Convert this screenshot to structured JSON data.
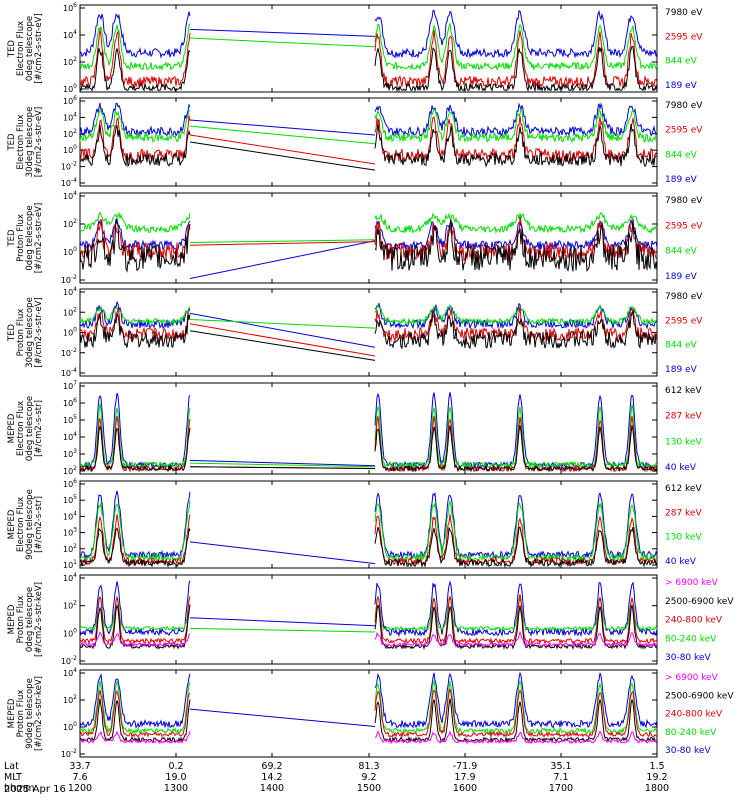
{
  "colors": {
    "black": "#000000",
    "red": "#e00000",
    "green": "#00dd00",
    "blue": "#0000dd",
    "magenta": "#ff00ff"
  },
  "chart_data": [
    {
      "type": "line",
      "title": "",
      "ylabel": [
        "TED",
        "Electron Flux",
        "0deg telescope",
        "[#/cm2-s-str-eV]"
      ],
      "yticks": [
        "10^6",
        "10^4",
        "10^2",
        "10^0"
      ],
      "legend": [
        {
          "label": "7980 eV",
          "color": "black"
        },
        {
          "label": "2595 eV",
          "color": "red"
        },
        {
          "label": "844 eV",
          "color": "green"
        },
        {
          "label": "189 eV",
          "color": "blue"
        }
      ]
    },
    {
      "type": "line",
      "title": "",
      "ylabel": [
        "TED",
        "Electron Flux",
        "30deg telescope",
        "[#/cm2-s-str-eV]"
      ],
      "yticks": [
        "10^6",
        "10^4",
        "10^2",
        "10^0",
        "10^-2",
        "10^-4"
      ],
      "legend": [
        {
          "label": "7980 eV",
          "color": "black"
        },
        {
          "label": "2595 eV",
          "color": "red"
        },
        {
          "label": "844 eV",
          "color": "green"
        },
        {
          "label": "189 eV",
          "color": "blue"
        }
      ]
    },
    {
      "type": "line",
      "title": "",
      "ylabel": [
        "TED",
        "Proton Flux",
        "0deg telescope",
        "[#/cm2-s-str-eV]"
      ],
      "yticks": [
        "10^4",
        "10^2",
        "10^0",
        "10^-2"
      ],
      "legend": [
        {
          "label": "7980 eV",
          "color": "black"
        },
        {
          "label": "2595 eV",
          "color": "red"
        },
        {
          "label": "844 eV",
          "color": "green"
        },
        {
          "label": "189 eV",
          "color": "blue"
        }
      ]
    },
    {
      "type": "line",
      "title": "",
      "ylabel": [
        "TED",
        "Proton Flux",
        "30deg telescope",
        "[#/cm2-s-str-eV]"
      ],
      "yticks": [
        "10^4",
        "10^2",
        "10^0",
        "10^-2",
        "10^-4"
      ],
      "legend": [
        {
          "label": "7980 eV",
          "color": "black"
        },
        {
          "label": "2595 eV",
          "color": "red"
        },
        {
          "label": "844 eV",
          "color": "green"
        },
        {
          "label": "189 eV",
          "color": "blue"
        }
      ]
    },
    {
      "type": "line",
      "title": "",
      "ylabel": [
        "MEPED",
        "Electron Flux",
        "0deg telescope",
        "[#/cm2-s-str]"
      ],
      "yticks": [
        "10^7",
        "10^6",
        "10^5",
        "10^4",
        "10^3",
        "10^2"
      ],
      "legend": [
        {
          "label": "612 keV",
          "color": "black"
        },
        {
          "label": "287 keV",
          "color": "red"
        },
        {
          "label": "130 keV",
          "color": "green"
        },
        {
          "label": "40 keV",
          "color": "blue"
        }
      ]
    },
    {
      "type": "line",
      "title": "",
      "ylabel": [
        "MEPED",
        "Electron Flux",
        "90deg telescope",
        "[#/cm2-s-str]"
      ],
      "yticks": [
        "10^6",
        "10^5",
        "10^4",
        "10^3",
        "10^2",
        "10^1"
      ],
      "legend": [
        {
          "label": "612 keV",
          "color": "black"
        },
        {
          "label": "287 keV",
          "color": "red"
        },
        {
          "label": "130 keV",
          "color": "green"
        },
        {
          "label": "40 keV",
          "color": "blue"
        }
      ]
    },
    {
      "type": "line",
      "title": "",
      "ylabel": [
        "MEPED",
        "Proton Flux",
        "0deg telescope",
        "[#/cm2-s-str-keV]"
      ],
      "yticks": [
        "10^4",
        "10^2",
        "10^0",
        "10^-2"
      ],
      "legend": [
        {
          "label": "> 6900 keV",
          "color": "magenta"
        },
        {
          "label": "2500-6900 keV",
          "color": "black"
        },
        {
          "label": "240-800 keV",
          "color": "red"
        },
        {
          "label": "80-240 keV",
          "color": "green"
        },
        {
          "label": "30-80 keV",
          "color": "blue"
        }
      ]
    },
    {
      "type": "line",
      "title": "",
      "ylabel": [
        "MEPED",
        "Proton Flux",
        "90deg telescope",
        "[#/cm2-s-str-keV]"
      ],
      "yticks": [
        "10^4",
        "10^2",
        "10^0",
        "10^-2"
      ],
      "legend": [
        {
          "label": "> 6900 keV",
          "color": "magenta"
        },
        {
          "label": "2500-6900 keV",
          "color": "black"
        },
        {
          "label": "240-800 keV",
          "color": "red"
        },
        {
          "label": "80-240 keV",
          "color": "green"
        },
        {
          "label": "30-80 keV",
          "color": "blue"
        }
      ]
    }
  ],
  "xaxis": {
    "row_labels": [
      "Lat",
      "MLT",
      "hhmm"
    ],
    "ticks": [
      {
        "lat": "33.7",
        "mlt": "7.6",
        "hhmm": "1200"
      },
      {
        "lat": "0.2",
        "mlt": "19.0",
        "hhmm": "1300"
      },
      {
        "lat": "69.2",
        "mlt": "14.2",
        "hhmm": "1400"
      },
      {
        "lat": "81.3",
        "mlt": "9.2",
        "hhmm": "1500"
      },
      {
        "lat": "-71.9",
        "mlt": "17.9",
        "hhmm": "1600"
      },
      {
        "lat": "35.1",
        "mlt": "7.1",
        "hhmm": "1700"
      },
      {
        "lat": "1.5",
        "mlt": "19.2",
        "hhmm": "1800"
      }
    ],
    "date": "2025 Apr 16"
  }
}
